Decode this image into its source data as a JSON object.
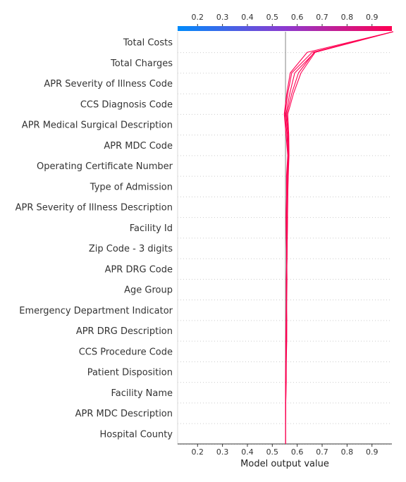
{
  "chart_data": {
    "type": "line",
    "subtype": "shap-decision-plot",
    "xlabel": "Model output value",
    "xlim": [
      0.12,
      0.98
    ],
    "xticks": [
      0.2,
      0.3,
      0.4,
      0.5,
      0.6,
      0.7,
      0.8,
      0.9
    ],
    "tick_labels": [
      "0.2",
      "0.3",
      "0.4",
      "0.5",
      "0.6",
      "0.7",
      "0.8",
      "0.9"
    ],
    "base_value": 0.553,
    "colormap": [
      "#008bfb",
      "#ff0052"
    ],
    "line_color": "#ff0052",
    "features": [
      "Total Costs",
      "Total Charges",
      "APR Severity of Illness Code",
      "CCS Diagnosis Code",
      "APR Medical Surgical Description",
      "APR MDC Code",
      "Operating Certificate Number",
      "Type of Admission",
      "APR Severity of Illness Description",
      "Facility Id",
      "Zip Code - 3 digits",
      "APR DRG Code",
      "Age Group",
      "Emergency Department Indicator",
      "APR DRG Description",
      "CCS Procedure Code",
      "Patient Disposition",
      "Facility Name",
      "APR MDC Description",
      "Hospital County"
    ],
    "series": [
      {
        "values": [
          0.553,
          0.553,
          0.554,
          0.556,
          0.556,
          0.558,
          0.558,
          0.556,
          0.556,
          0.558,
          0.556,
          0.555,
          0.557,
          0.557,
          0.562,
          0.555,
          0.548,
          0.558,
          0.572,
          0.64,
          0.985
        ]
      },
      {
        "values": [
          0.553,
          0.553,
          0.554,
          0.555,
          0.556,
          0.557,
          0.558,
          0.557,
          0.557,
          0.557,
          0.557,
          0.557,
          0.558,
          0.559,
          0.563,
          0.559,
          0.551,
          0.562,
          0.578,
          0.66,
          0.985
        ]
      },
      {
        "values": [
          0.553,
          0.553,
          0.553,
          0.554,
          0.555,
          0.556,
          0.557,
          0.558,
          0.559,
          0.558,
          0.559,
          0.56,
          0.561,
          0.562,
          0.565,
          0.562,
          0.555,
          0.57,
          0.59,
          0.67,
          0.985
        ]
      },
      {
        "values": [
          0.553,
          0.553,
          0.554,
          0.554,
          0.554,
          0.555,
          0.556,
          0.557,
          0.558,
          0.559,
          0.56,
          0.561,
          0.562,
          0.563,
          0.566,
          0.565,
          0.558,
          0.578,
          0.605,
          0.668,
          0.985
        ]
      },
      {
        "values": [
          0.553,
          0.553,
          0.553,
          0.553,
          0.554,
          0.554,
          0.555,
          0.556,
          0.557,
          0.559,
          0.56,
          0.561,
          0.562,
          0.564,
          0.567,
          0.566,
          0.562,
          0.585,
          0.615,
          0.672,
          0.985
        ]
      }
    ]
  }
}
